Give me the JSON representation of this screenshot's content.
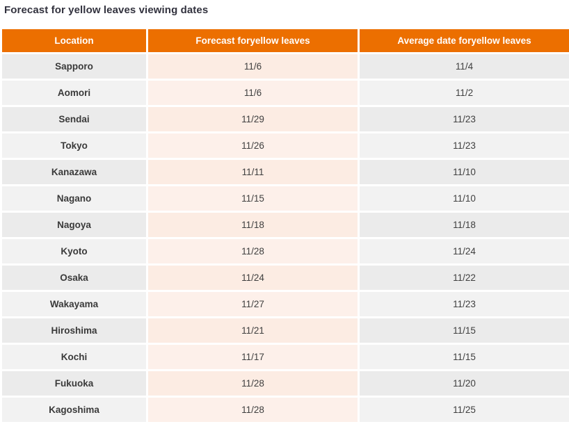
{
  "page": {
    "title": "Forecast for yellow leaves viewing dates"
  },
  "table": {
    "columns": [
      "Location",
      "Forecast foryellow leaves",
      "Average date foryellow leaves"
    ],
    "rows": [
      {
        "location": "Sapporo",
        "forecast": "11/6",
        "average": "11/4"
      },
      {
        "location": "Aomori",
        "forecast": "11/6",
        "average": "11/2"
      },
      {
        "location": "Sendai",
        "forecast": "11/29",
        "average": "11/23"
      },
      {
        "location": "Tokyo",
        "forecast": "11/26",
        "average": "11/23"
      },
      {
        "location": "Kanazawa",
        "forecast": "11/11",
        "average": "11/10"
      },
      {
        "location": "Nagano",
        "forecast": "11/15",
        "average": "11/10"
      },
      {
        "location": "Nagoya",
        "forecast": "11/18",
        "average": "11/18"
      },
      {
        "location": "Kyoto",
        "forecast": "11/28",
        "average": "11/24"
      },
      {
        "location": "Osaka",
        "forecast": "11/24",
        "average": "11/22"
      },
      {
        "location": "Wakayama",
        "forecast": "11/27",
        "average": "11/23"
      },
      {
        "location": "Hiroshima",
        "forecast": "11/21",
        "average": "11/15"
      },
      {
        "location": "Kochi",
        "forecast": "11/17",
        "average": "11/15"
      },
      {
        "location": "Fukuoka",
        "forecast": "11/28",
        "average": "11/20"
      },
      {
        "location": "Kagoshima",
        "forecast": "11/28",
        "average": "11/25"
      }
    ]
  },
  "colors": {
    "header_bg": "#ec6f00",
    "header_text": "#ffffff",
    "title_text": "#32323e",
    "cell_text": "#3f3f3f",
    "row_gray_odd": "#ebebeb",
    "row_gray_even": "#f2f2f2",
    "row_peach_odd": "#fcece3",
    "row_peach_even": "#fdf0ea"
  },
  "chart_data": {
    "type": "table",
    "title": "Forecast for yellow leaves viewing dates",
    "columns": [
      "Location",
      "Forecast foryellow leaves",
      "Average date foryellow leaves"
    ],
    "rows": [
      [
        "Sapporo",
        "11/6",
        "11/4"
      ],
      [
        "Aomori",
        "11/6",
        "11/2"
      ],
      [
        "Sendai",
        "11/29",
        "11/23"
      ],
      [
        "Tokyo",
        "11/26",
        "11/23"
      ],
      [
        "Kanazawa",
        "11/11",
        "11/10"
      ],
      [
        "Nagano",
        "11/15",
        "11/10"
      ],
      [
        "Nagoya",
        "11/18",
        "11/18"
      ],
      [
        "Kyoto",
        "11/28",
        "11/24"
      ],
      [
        "Osaka",
        "11/24",
        "11/22"
      ],
      [
        "Wakayama",
        "11/27",
        "11/23"
      ],
      [
        "Hiroshima",
        "11/21",
        "11/15"
      ],
      [
        "Kochi",
        "11/17",
        "11/15"
      ],
      [
        "Fukuoka",
        "11/28",
        "11/20"
      ],
      [
        "Kagoshima",
        "11/28",
        "11/25"
      ]
    ]
  }
}
